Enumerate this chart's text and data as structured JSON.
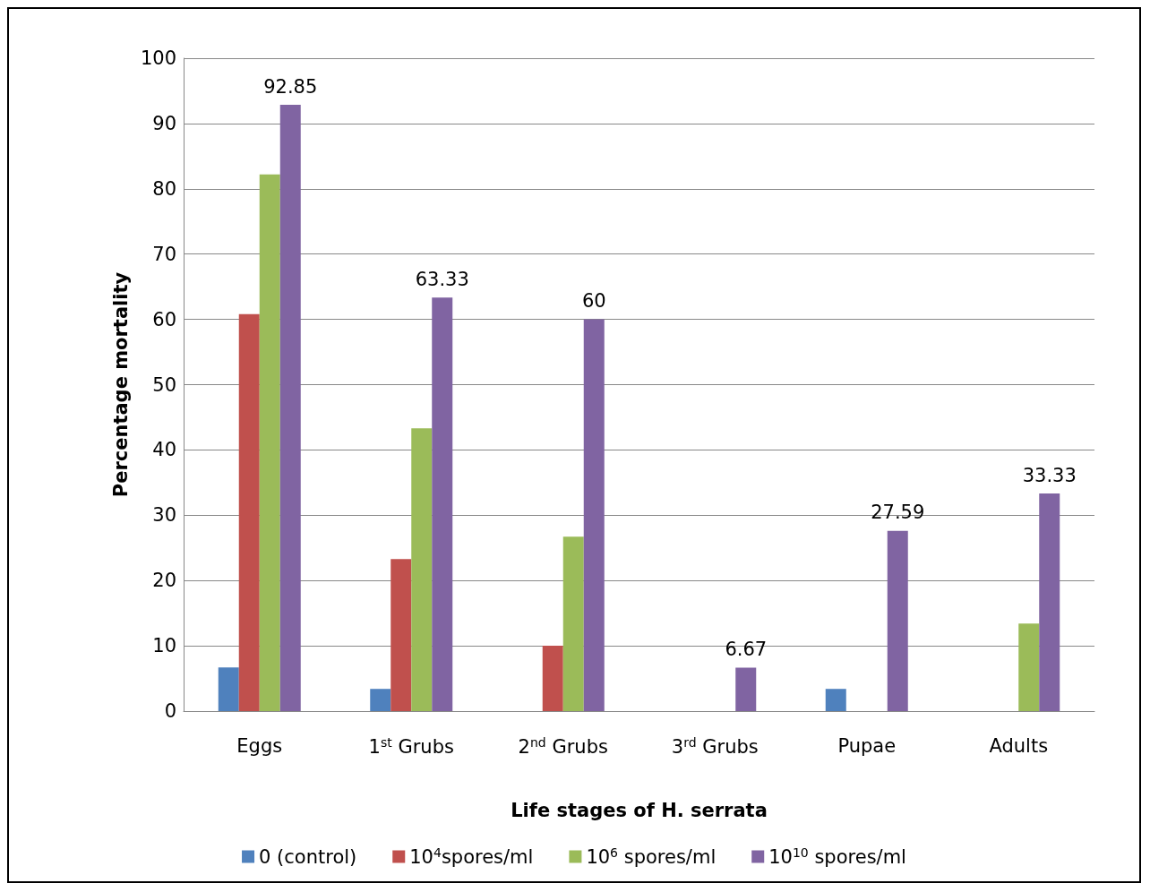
{
  "chart_data": {
    "type": "bar",
    "xlabel": "Life stages of H. serrata",
    "ylabel": "Percentage mortality",
    "categories": [
      "Eggs",
      "1$^{st}$ Grubs",
      "2$^{nd}$ Grubs",
      "3$^{rd}$ Grubs",
      "Pupae",
      "Adults"
    ],
    "series": [
      {
        "name": "0 (control)",
        "color": "#4f81bd",
        "values": [
          6.7,
          3.4,
          0,
          0,
          3.4,
          0
        ]
      },
      {
        "name": "10$^{4}$spores/ml",
        "color": "#c0504d",
        "values": [
          60.8,
          23.3,
          10,
          0,
          0,
          0
        ]
      },
      {
        "name": "10$^{6}$ spores/ml",
        "color": "#9bbb59",
        "values": [
          82.2,
          43.3,
          26.7,
          0,
          0,
          13.4
        ]
      },
      {
        "name": "10$^{10}$ spores/ml",
        "color": "#8064a2",
        "values": [
          92.85,
          63.33,
          60,
          6.67,
          27.59,
          33.33
        ],
        "value_labels": [
          "92.85",
          "63.33",
          "60",
          "6.67",
          "27.59",
          "33.33"
        ]
      }
    ],
    "ylim": [
      0,
      100
    ],
    "yticks": [
      0,
      10,
      20,
      30,
      40,
      50,
      60,
      70,
      80,
      90,
      100
    ],
    "grid": "y",
    "legend": "bottom"
  }
}
